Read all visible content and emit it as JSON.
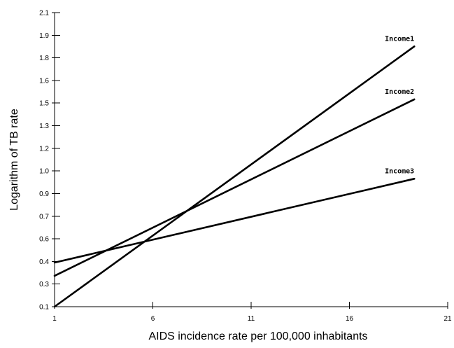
{
  "chart_data": {
    "type": "line",
    "xlabel": "AIDS incidence rate per 100,000 inhabitants",
    "ylabel": "Logarithm of TB rate",
    "x_ticks": [
      "1",
      "6",
      "11",
      "16",
      "21"
    ],
    "y_ticks": [
      "0.1",
      "0.3",
      "0.4",
      "0.6",
      "0.7",
      "0.9",
      "1.0",
      "1.2",
      "1.3",
      "1.5",
      "1.6",
      "1.8",
      "1.9",
      "2.1"
    ],
    "xlim": [
      1,
      21
    ],
    "ylim": [
      0.1,
      2.1
    ],
    "grid": false,
    "series": [
      {
        "name": "Income1",
        "x": [
          1,
          19.3
        ],
        "y": [
          0.1,
          1.87
        ]
      },
      {
        "name": "Income2",
        "x": [
          1,
          19.3
        ],
        "y": [
          0.31,
          1.51
        ]
      },
      {
        "name": "Income3",
        "x": [
          1,
          19.3
        ],
        "y": [
          0.4,
          0.97
        ]
      }
    ],
    "line_color": "#000000"
  }
}
